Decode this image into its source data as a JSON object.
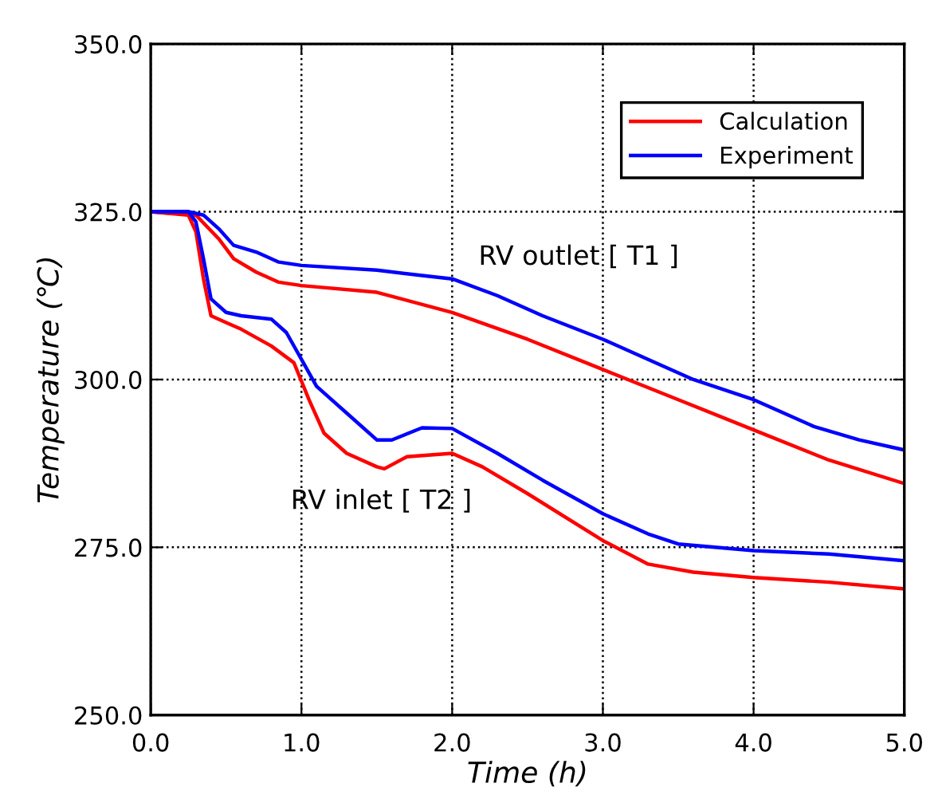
{
  "chart_data": {
    "type": "line",
    "xlabel": "Time (h)",
    "ylabel": "Temperature (℃)",
    "xlim": [
      0,
      5
    ],
    "ylim": [
      250,
      350
    ],
    "xticks": [
      {
        "value": 0,
        "label": "0.0"
      },
      {
        "value": 1,
        "label": "1.0"
      },
      {
        "value": 2,
        "label": "2.0"
      },
      {
        "value": 3,
        "label": "3.0"
      },
      {
        "value": 4,
        "label": "4.0"
      },
      {
        "value": 5,
        "label": "5.0"
      }
    ],
    "yticks": [
      {
        "value": 250,
        "label": "250.0"
      },
      {
        "value": 275,
        "label": "275.0"
      },
      {
        "value": 300,
        "label": "300.0"
      },
      {
        "value": 325,
        "label": "325.0"
      },
      {
        "value": 350,
        "label": "350.0"
      }
    ],
    "grid": true,
    "legend": "top right",
    "line_style": "solid",
    "marker": "none",
    "series": [
      {
        "name": "Calculation",
        "color": "#ff0000",
        "x": [
          0,
          0.3,
          0.45,
          0.55,
          0.7,
          0.85,
          1.0,
          1.5,
          2.0,
          2.5,
          3.0,
          3.5,
          4.0,
          4.5,
          5.0
        ],
        "values": [
          325,
          324.5,
          321,
          318,
          316,
          314.5,
          314,
          313,
          310,
          306,
          301.5,
          297,
          292.5,
          288,
          284.5
        ]
      },
      {
        "name": "Experiment",
        "color": "#0000ff",
        "x": [
          0,
          0.25,
          0.35,
          0.45,
          0.55,
          0.7,
          0.85,
          1.0,
          1.5,
          1.8,
          2.0,
          2.3,
          2.6,
          3.0,
          3.3,
          3.6,
          4.0,
          4.4,
          4.7,
          5.0
        ],
        "values": [
          325,
          325,
          324.5,
          322.5,
          320,
          319,
          317.5,
          317,
          316.3,
          315.5,
          315,
          312.5,
          309.5,
          306,
          303,
          300,
          297,
          293,
          291,
          289.5
        ]
      },
      {
        "color": "#ff0000",
        "x": [
          0,
          0.25,
          0.3,
          0.35,
          0.4,
          0.5,
          0.6,
          0.8,
          0.95,
          1.05,
          1.15,
          1.3,
          1.5,
          1.55,
          1.7,
          2.0,
          2.2,
          2.5,
          3.0,
          3.3,
          3.6,
          4.0,
          4.5,
          5.0
        ],
        "values": [
          325,
          324.5,
          322,
          315,
          309.5,
          308.5,
          307.5,
          305,
          302.5,
          297,
          292,
          289,
          287,
          286.7,
          288.5,
          289,
          287,
          283,
          276,
          272.5,
          271.3,
          270.5,
          269.8,
          268.8
        ]
      },
      {
        "color": "#0000ff",
        "x": [
          0,
          0.25,
          0.3,
          0.35,
          0.4,
          0.5,
          0.6,
          0.8,
          0.9,
          1.0,
          1.1,
          1.3,
          1.5,
          1.6,
          1.8,
          2.0,
          2.3,
          2.6,
          3.0,
          3.3,
          3.5,
          4.0,
          4.5,
          5.0
        ],
        "values": [
          325,
          325,
          323.5,
          318,
          312,
          310,
          309.5,
          309,
          307,
          303,
          299,
          295,
          291,
          291,
          292.8,
          292.7,
          289,
          285,
          280,
          277,
          275.5,
          274.5,
          274,
          273
        ]
      }
    ],
    "annotations": [
      "RV outlet [ T1 ]",
      "RV inlet [ T2 ]"
    ]
  }
}
